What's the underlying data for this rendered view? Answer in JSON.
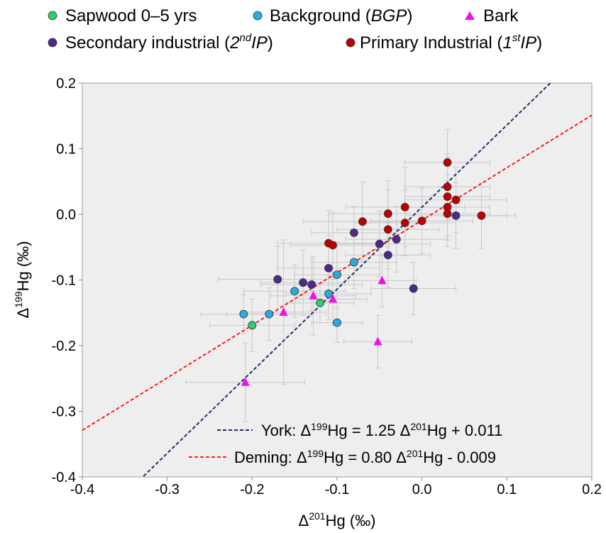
{
  "chart_data": {
    "type": "scatter",
    "xlabel": "Δ201Hg (‰)",
    "ylabel": "Δ199Hg (‰)",
    "xlim": [
      -0.4,
      0.2
    ],
    "ylim": [
      -0.4,
      0.2
    ],
    "xticks": [
      "-0.4",
      "-0.3",
      "-0.2",
      "-0.1",
      "0.0",
      "0.1",
      "0.2"
    ],
    "yticks": [
      "-0.4",
      "-0.3",
      "-0.2",
      "-0.1",
      "0.0",
      "0.1",
      "0.2"
    ],
    "grid": false,
    "plot_background": "#eeeeee",
    "legend_position": "top",
    "series": [
      {
        "name": "Sapwood 0–5 yrs",
        "marker": "circle",
        "color": "#2ecc71",
        "points": [
          [
            -0.2,
            -0.169,
            0.05,
            0.04
          ],
          [
            -0.12,
            -0.135,
            0.04,
            0.03
          ]
        ]
      },
      {
        "name": "Background (BGP)",
        "marker": "circle",
        "color": "#29abe2",
        "points": [
          [
            -0.21,
            -0.152,
            0.05,
            0.03
          ],
          [
            -0.18,
            -0.152,
            0.05,
            0.04
          ],
          [
            -0.15,
            -0.117,
            0.06,
            0.04
          ],
          [
            -0.11,
            -0.121,
            0.05,
            0.04
          ],
          [
            -0.1,
            -0.092,
            0.05,
            0.05
          ],
          [
            -0.1,
            -0.165,
            0.03,
            0.03
          ],
          [
            -0.08,
            -0.073,
            0.05,
            0.04
          ]
        ]
      },
      {
        "name": "Bark",
        "marker": "triangle",
        "color": "#ee10e8",
        "points": [
          [
            -0.208,
            -0.256,
            0.07,
            0.06
          ],
          [
            -0.163,
            -0.149,
            0.05,
            0.11
          ],
          [
            -0.128,
            -0.124,
            0.05,
            0.06
          ],
          [
            -0.105,
            -0.129,
            0.04,
            0.04
          ],
          [
            -0.047,
            -0.101,
            0.04,
            0.04
          ],
          [
            -0.052,
            -0.194,
            0.04,
            0.04
          ]
        ]
      },
      {
        "name": "Secondary industrial (2ndIP)",
        "marker": "circle",
        "color": "#4b2a8a",
        "points": [
          [
            -0.17,
            -0.099,
            0.07,
            0.05
          ],
          [
            -0.14,
            -0.104,
            0.05,
            0.05
          ],
          [
            -0.13,
            -0.107,
            0.06,
            0.04
          ],
          [
            -0.11,
            -0.082,
            0.06,
            0.05
          ],
          [
            -0.08,
            -0.028,
            0.05,
            0.04
          ],
          [
            -0.05,
            -0.045,
            0.06,
            0.05
          ],
          [
            -0.04,
            -0.062,
            0.05,
            0.05
          ],
          [
            -0.03,
            -0.038,
            0.06,
            0.05
          ],
          [
            -0.01,
            -0.113,
            0.05,
            0.04
          ],
          [
            0.04,
            -0.002,
            0.06,
            0.05
          ]
        ]
      },
      {
        "name": "Primary Industrial (1stIP)",
        "marker": "circle",
        "color": "#c00000",
        "points": [
          [
            -0.11,
            -0.044,
            0.06,
            0.05
          ],
          [
            -0.105,
            -0.047,
            0.05,
            0.05
          ],
          [
            -0.07,
            -0.011,
            0.07,
            0.06
          ],
          [
            -0.04,
            0.001,
            0.07,
            0.05
          ],
          [
            -0.04,
            -0.023,
            0.06,
            0.06
          ],
          [
            -0.02,
            0.011,
            0.07,
            0.06
          ],
          [
            -0.02,
            -0.013,
            0.06,
            0.05
          ],
          [
            0.0,
            -0.01,
            0.06,
            0.05
          ],
          [
            0.03,
            0.079,
            0.05,
            0.05
          ],
          [
            0.03,
            0.042,
            0.05,
            0.05
          ],
          [
            0.03,
            0.027,
            0.05,
            0.06
          ],
          [
            0.03,
            0.011,
            0.05,
            0.05
          ],
          [
            0.03,
            0.001,
            0.05,
            0.05
          ],
          [
            0.04,
            0.022,
            0.06,
            0.05
          ],
          [
            0.07,
            -0.002,
            0.04,
            0.05
          ]
        ]
      }
    ],
    "fits": [
      {
        "name": "York",
        "slope": 1.25,
        "intercept": 0.011,
        "color": "#1f2f6b",
        "label": "York: Δ199Hg = 1.25 Δ201Hg  + 0.011"
      },
      {
        "name": "Deming",
        "slope": 0.8,
        "intercept": -0.009,
        "color": "#ff1f1f",
        "label": "Deming: Δ199Hg = 0.80 Δ201Hg  - 0.009"
      }
    ]
  }
}
